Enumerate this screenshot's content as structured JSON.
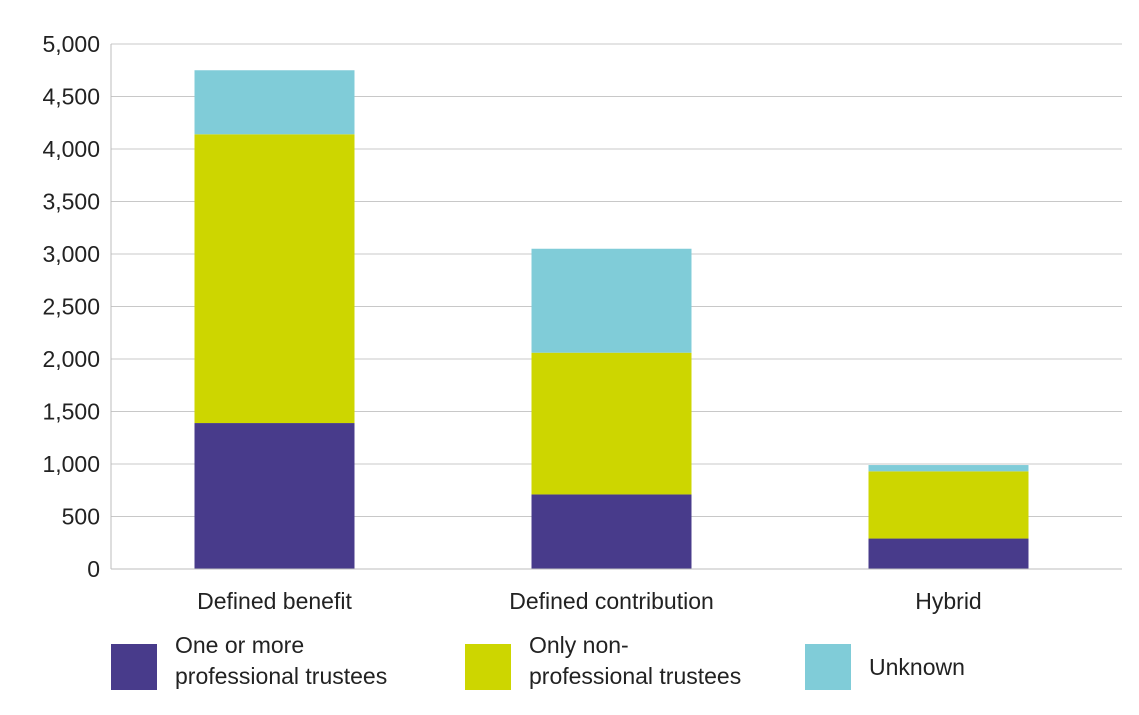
{
  "chart_data": {
    "type": "bar",
    "stacked": true,
    "categories": [
      "Defined benefit",
      "Defined contribution",
      "Hybrid"
    ],
    "series": [
      {
        "name": "One or more professional trustees",
        "color": "#483b8b",
        "values": [
          1390,
          710,
          290
        ]
      },
      {
        "name": "Only non-professional trustees",
        "color": "#cdd600",
        "values": [
          2750,
          1350,
          640
        ]
      },
      {
        "name": "Unknown",
        "color": "#80ccd8",
        "values": [
          610,
          990,
          60
        ]
      }
    ],
    "ylim": [
      0,
      5000
    ],
    "yticks": [
      0,
      500,
      1000,
      1500,
      2000,
      2500,
      3000,
      3500,
      4000,
      4500,
      5000
    ],
    "ytick_labels": [
      "0",
      "500",
      "1,000",
      "1,500",
      "2,000",
      "2,500",
      "3,000",
      "3,500",
      "4,000",
      "4,500",
      "5,000"
    ],
    "grid": true,
    "legend_position": "bottom"
  },
  "legend": {
    "items": [
      {
        "line1": "One or more",
        "line2": "professional trustees",
        "color": "#483b8b"
      },
      {
        "line1": "Only non-",
        "line2": "professional trustees",
        "color": "#cdd600"
      },
      {
        "line1": "Unknown",
        "line2": "",
        "color": "#80ccd8"
      }
    ]
  }
}
